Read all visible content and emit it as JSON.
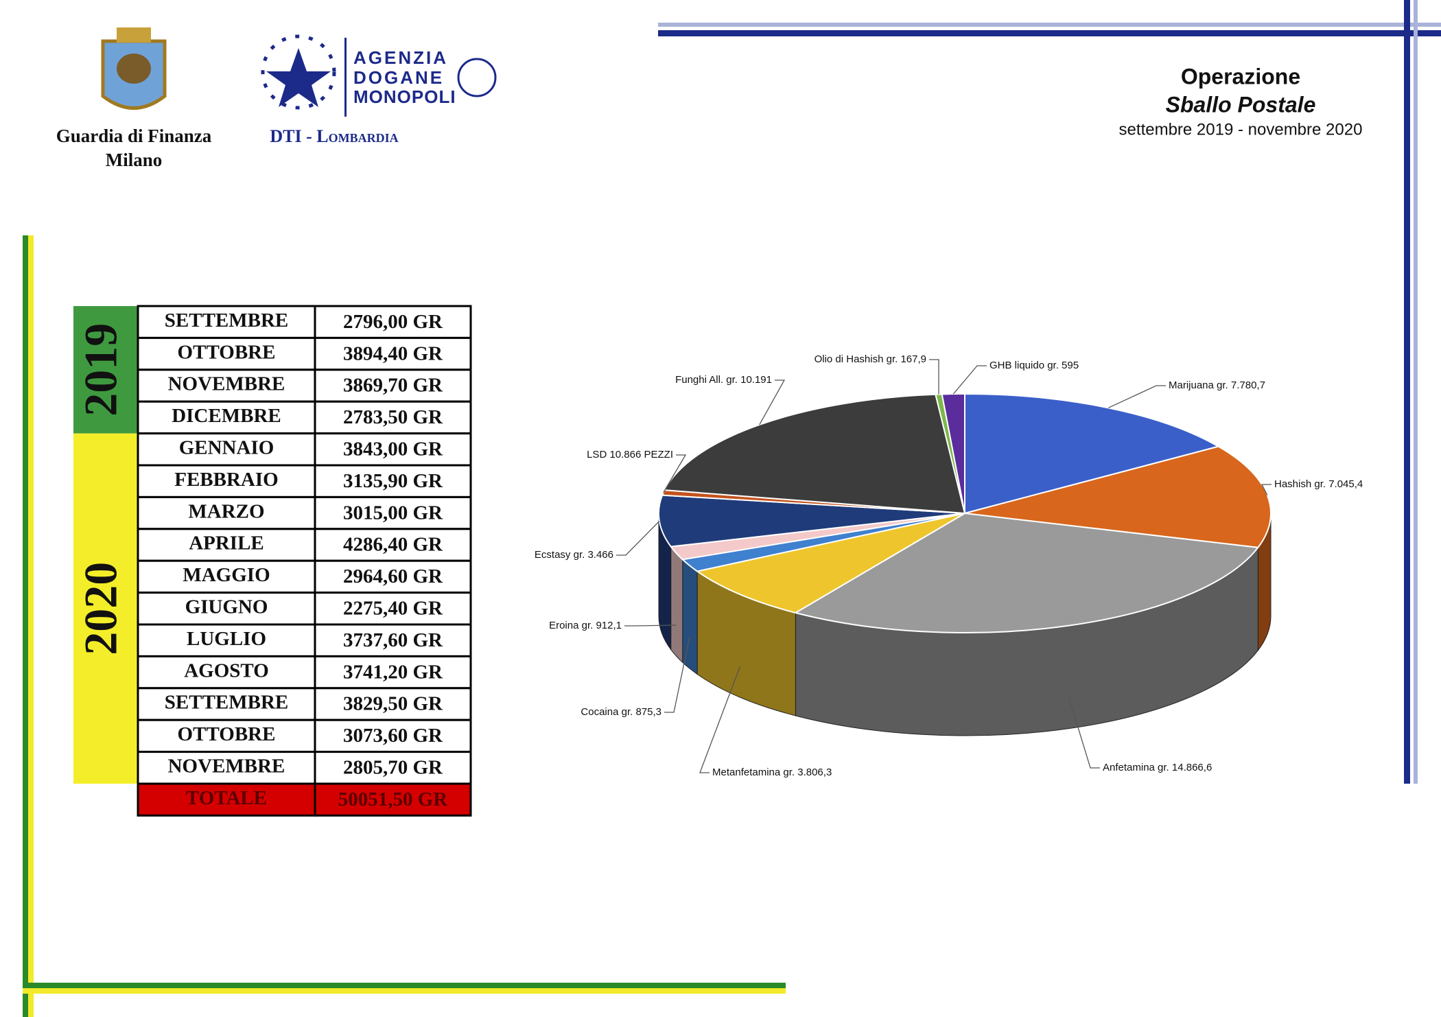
{
  "header": {
    "org": [
      "Guardia di Finanza",
      "Milano"
    ],
    "agency": [
      "AGENZIA",
      "DOGANE",
      "MONOPOLI"
    ],
    "agency_unit": "DTI - Lombardia",
    "title": "Operazione",
    "subtitle": "Sballo Postale",
    "period": "settembre 2019 - novembre 2020"
  },
  "table": {
    "years": [
      "2019",
      "2020"
    ],
    "rows": [
      [
        "SETTEMBRE",
        "2796,00 GR"
      ],
      [
        "OTTOBRE",
        "3894,40 GR"
      ],
      [
        "NOVEMBRE",
        "3869,70 GR"
      ],
      [
        "DICEMBRE",
        "2783,50 GR"
      ],
      [
        "GENNAIO",
        "3843,00 GR"
      ],
      [
        "FEBBRAIO",
        "3135,90 GR"
      ],
      [
        "MARZO",
        "3015,00 GR"
      ],
      [
        "APRILE",
        "4286,40 GR"
      ],
      [
        "MAGGIO",
        "2964,60 GR"
      ],
      [
        "GIUGNO",
        "2275,40 GR"
      ],
      [
        "LUGLIO",
        "3737,60 GR"
      ],
      [
        "AGOSTO",
        "3741,20 GR"
      ],
      [
        "SETTEMBRE",
        "3829,50 GR"
      ],
      [
        "OTTOBRE",
        "3073,60 GR"
      ],
      [
        "NOVEMBRE",
        "2805,70 GR"
      ]
    ],
    "total": [
      "TOTALE",
      "50051,50 GR"
    ]
  },
  "chart_data": {
    "type": "pie",
    "categories": [
      "Marijuana gr. 7.780,7",
      "Hashish gr. 7.045,4",
      "Anfetamina gr. 14.866,6",
      "Metanfetamina gr. 3.806,3",
      "Cocaina gr. 875,3",
      "Eroina gr. 912,1",
      "Ecstasy gr. 3.466",
      "LSD 10.866 PEZZI",
      "Funghi All. gr.  10.191",
      "Olio di Hashish gr. 167,9",
      "GHB liquido gr. 595"
    ],
    "values": [
      7780.7,
      7045.4,
      14866.6,
      3806.3,
      875.3,
      912.1,
      3466,
      345,
      10191,
      167.9,
      595
    ],
    "colors": [
      "#3b5fc9",
      "#d8661c",
      "#9a9a9a",
      "#eec52c",
      "#3f80cf",
      "#f3c9c9",
      "#1f3b7a",
      "#c4521c",
      "#3c3c3c",
      "#7cb84a",
      "#5a2c9c"
    ]
  }
}
